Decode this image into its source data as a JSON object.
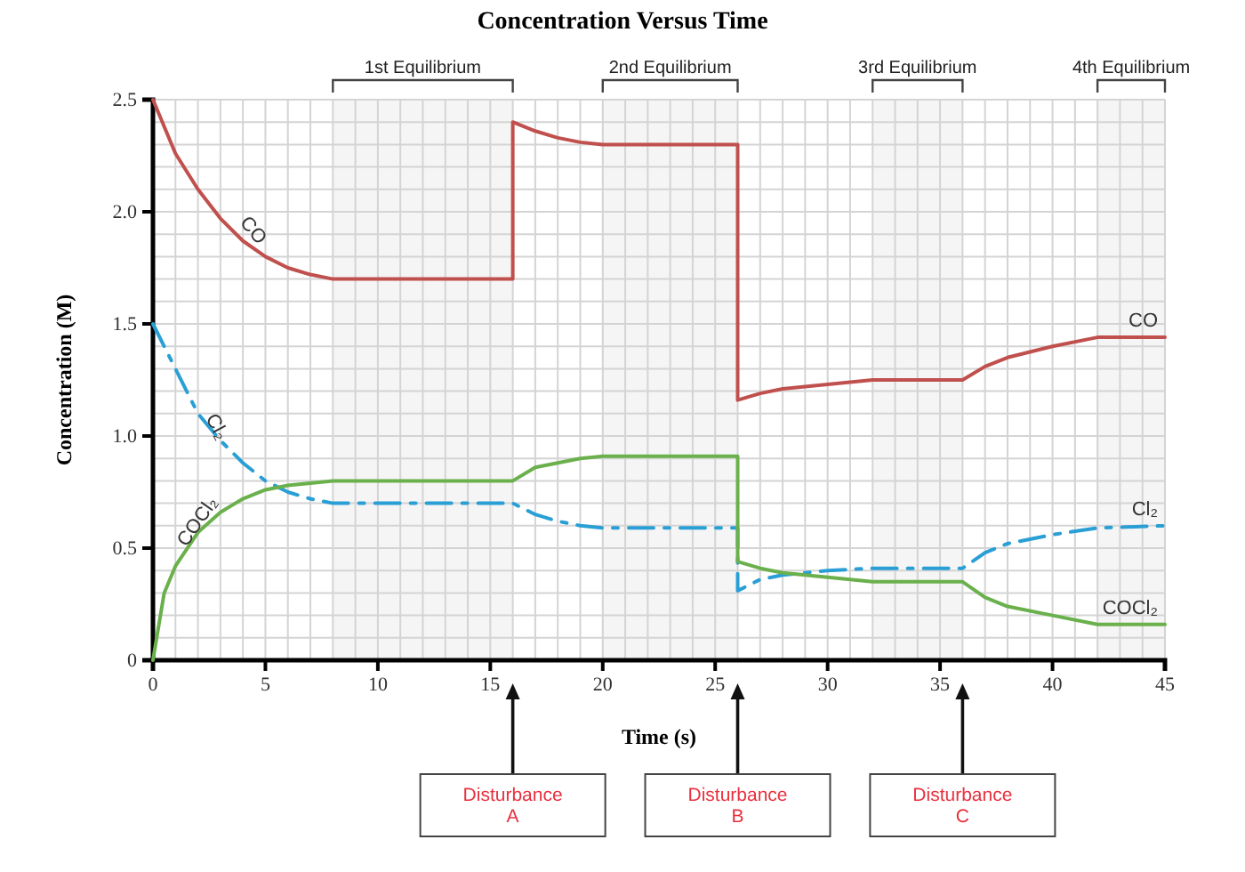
{
  "chart_data": {
    "type": "line",
    "title": "Concentration Versus Time",
    "xlabel": "Time (s)",
    "ylabel": "Concentration (M)",
    "xlim": [
      0,
      45
    ],
    "ylim": [
      0,
      2.5
    ],
    "xticks": [
      0,
      {
        "value": 1,
        "label": null
      },
      {
        "value": 2,
        "label": null
      },
      {
        "value": 3,
        "label": null
      },
      {
        "value": 4,
        "label": null
      },
      5,
      {
        "value": 6,
        "label": null
      },
      {
        "value": 7,
        "label": null
      },
      {
        "value": 8,
        "label": null
      },
      {
        "value": 9,
        "label": null
      },
      10,
      {
        "value": 11,
        "label": null
      },
      {
        "value": 12,
        "label": null
      },
      {
        "value": 13,
        "label": null
      },
      {
        "value": 14,
        "label": null
      },
      15,
      {
        "value": 16,
        "label": null
      },
      {
        "value": 17,
        "label": null
      },
      {
        "value": 18,
        "label": null
      },
      {
        "value": 19,
        "label": null
      },
      20,
      {
        "value": 21,
        "label": null
      },
      {
        "value": 22,
        "label": null
      },
      {
        "value": 23,
        "label": null
      },
      {
        "value": 24,
        "label": null
      },
      25,
      {
        "value": 26,
        "label": null
      },
      {
        "value": 27,
        "label": null
      },
      {
        "value": 28,
        "label": null
      },
      {
        "value": 29,
        "label": null
      },
      30,
      {
        "value": 31,
        "label": null
      },
      {
        "value": 32,
        "label": null
      },
      {
        "value": 33,
        "label": null
      },
      {
        "value": 34,
        "label": null
      },
      35,
      {
        "value": 36,
        "label": null
      },
      {
        "value": 37,
        "label": null
      },
      {
        "value": 38,
        "label": null
      },
      {
        "value": 39,
        "label": null
      },
      40,
      {
        "value": 41,
        "label": null
      },
      {
        "value": 42,
        "label": null
      },
      {
        "value": 43,
        "label": null
      },
      {
        "value": 44,
        "label": null
      },
      45
    ],
    "yticks": [
      0,
      {
        "value": 0.1,
        "label": null
      },
      {
        "value": 0.2,
        "label": null
      },
      {
        "value": 0.3,
        "label": null
      },
      {
        "value": 0.4,
        "label": null
      },
      0.5,
      {
        "value": 0.6,
        "label": null
      },
      {
        "value": 0.7,
        "label": null
      },
      {
        "value": 0.8,
        "label": null
      },
      {
        "value": 0.9,
        "label": null
      },
      {
        "value": 1,
        "label": "1.0"
      },
      {
        "value": 1.1,
        "label": null
      },
      {
        "value": 1.2,
        "label": null
      },
      {
        "value": 1.3,
        "label": null
      },
      {
        "value": 1.4,
        "label": null
      },
      1.5,
      {
        "value": 1.6,
        "label": null
      },
      {
        "value": 1.7,
        "label": null
      },
      {
        "value": 1.8,
        "label": null
      },
      {
        "value": 1.9,
        "label": null
      },
      {
        "value": 2,
        "label": "2.0"
      },
      {
        "value": 2.1,
        "label": null
      },
      {
        "value": 2.2,
        "label": null
      },
      {
        "value": 2.3,
        "label": null
      },
      {
        "value": 2.4,
        "label": null
      },
      2.5
    ],
    "grid": true,
    "marker": "none",
    "series": [
      {
        "name": "CO",
        "color": "#c0504d",
        "line_style": "solid",
        "x": [
          0,
          1,
          2,
          3,
          4,
          5,
          6,
          7,
          8,
          16,
          16,
          17,
          18,
          19,
          20,
          26,
          26,
          27,
          28,
          30,
          32,
          36,
          37,
          38,
          40,
          42,
          45
        ],
        "values": [
          2.5,
          2.26,
          2.1,
          1.97,
          1.87,
          1.8,
          1.75,
          1.72,
          1.7,
          1.7,
          2.4,
          2.36,
          2.33,
          2.31,
          2.3,
          2.3,
          1.16,
          1.19,
          1.21,
          1.23,
          1.25,
          1.25,
          1.31,
          1.35,
          1.4,
          1.44,
          1.44
        ]
      },
      {
        "name": "Cl₂",
        "color": "#2a9fd6",
        "line_style": "dashed",
        "x": [
          0,
          1,
          2,
          3,
          4,
          5,
          6,
          7,
          8,
          16,
          17,
          18,
          19,
          20,
          26,
          26,
          27,
          28,
          30,
          32,
          36,
          37,
          38,
          40,
          42,
          45
        ],
        "values": [
          1.5,
          1.3,
          1.1,
          0.98,
          0.88,
          0.8,
          0.75,
          0.72,
          0.7,
          0.7,
          0.65,
          0.62,
          0.6,
          0.59,
          0.59,
          0.31,
          0.36,
          0.38,
          0.4,
          0.41,
          0.41,
          0.48,
          0.52,
          0.56,
          0.59,
          0.6
        ]
      },
      {
        "name": "COCl₂",
        "color": "#6ab04c",
        "line_style": "solid",
        "x": [
          0,
          0.5,
          1,
          2,
          3,
          4,
          5,
          6,
          7,
          8,
          16,
          17,
          18,
          19,
          20,
          26,
          26,
          27,
          28,
          30,
          32,
          36,
          37,
          38,
          40,
          42,
          45
        ],
        "values": [
          0,
          0.3,
          0.42,
          0.57,
          0.66,
          0.72,
          0.76,
          0.78,
          0.79,
          0.8,
          0.8,
          0.86,
          0.88,
          0.9,
          0.91,
          0.91,
          0.44,
          0.41,
          0.39,
          0.37,
          0.35,
          0.35,
          0.28,
          0.24,
          0.2,
          0.16,
          0.16
        ]
      }
    ],
    "bands": [
      {
        "axis": "x",
        "from": 8,
        "to": 16,
        "label": "1st Equilibrium"
      },
      {
        "axis": "x",
        "from": 20,
        "to": 26,
        "label": "2nd Equilibrium"
      },
      {
        "axis": "x",
        "from": 32,
        "to": 36,
        "label": "3rd Equilibrium"
      },
      {
        "axis": "x",
        "from": 42,
        "to": 45,
        "label": "4th Equilibrium"
      }
    ],
    "annotations": [
      "Disturbance A",
      "Disturbance B",
      "Disturbance C"
    ]
  }
}
